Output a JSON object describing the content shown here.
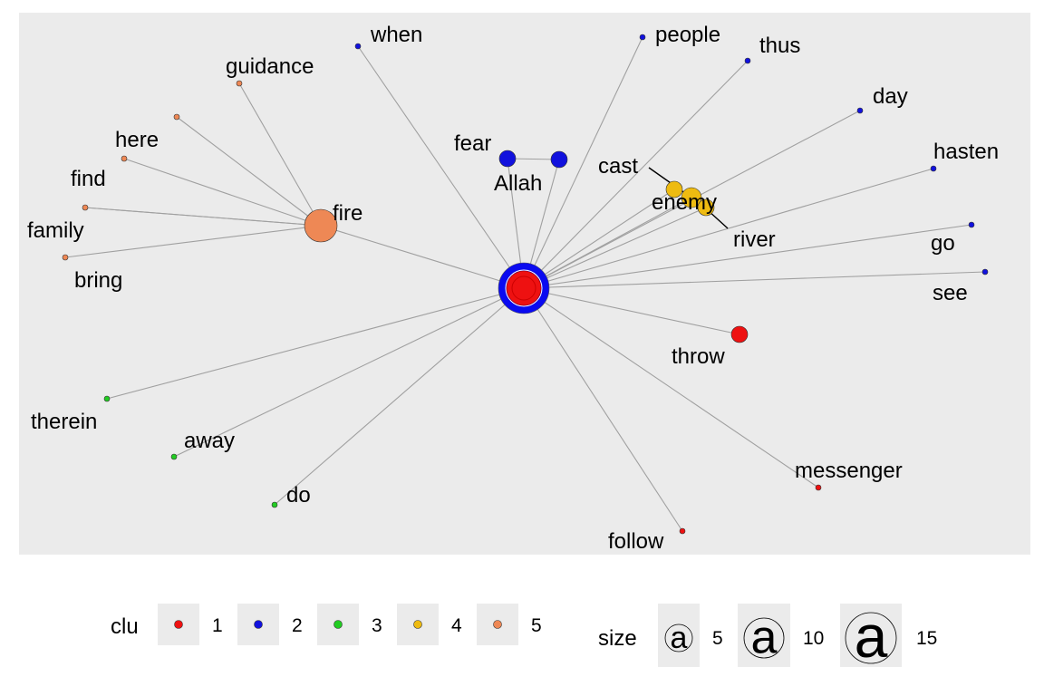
{
  "graph": {
    "center_node": "center",
    "nodes": [
      {
        "id": "center",
        "label": "",
        "cluster": 2,
        "kind": "hub"
      },
      {
        "id": "when",
        "label": "when",
        "cluster": 2
      },
      {
        "id": "people",
        "label": "people",
        "cluster": 2
      },
      {
        "id": "thus",
        "label": "thus",
        "cluster": 2
      },
      {
        "id": "day",
        "label": "day",
        "cluster": 2
      },
      {
        "id": "hasten",
        "label": "hasten",
        "cluster": 2
      },
      {
        "id": "go",
        "label": "go",
        "cluster": 2
      },
      {
        "id": "see",
        "label": "see",
        "cluster": 2
      },
      {
        "id": "fear",
        "label": "fear",
        "cluster": 2
      },
      {
        "id": "Allah",
        "label": "Allah",
        "cluster": 2
      },
      {
        "id": "guidance",
        "label": "guidance",
        "cluster": 5
      },
      {
        "id": "here",
        "label": "here",
        "cluster": 5
      },
      {
        "id": "unlabeled5",
        "label": "",
        "cluster": 5
      },
      {
        "id": "find",
        "label": "find",
        "cluster": 5
      },
      {
        "id": "family",
        "label": "family",
        "cluster": 5
      },
      {
        "id": "bring",
        "label": "bring",
        "cluster": 5
      },
      {
        "id": "fire",
        "label": "fire",
        "cluster": 5
      },
      {
        "id": "cast",
        "label": "cast",
        "cluster": 4
      },
      {
        "id": "enemy",
        "label": "enemy",
        "cluster": 4
      },
      {
        "id": "river",
        "label": "river",
        "cluster": 4
      },
      {
        "id": "throw",
        "label": "throw",
        "cluster": 1
      },
      {
        "id": "messenger",
        "label": "messenger",
        "cluster": 1
      },
      {
        "id": "follow",
        "label": "follow",
        "cluster": 1
      },
      {
        "id": "therein",
        "label": "therein",
        "cluster": 3
      },
      {
        "id": "away",
        "label": "away",
        "cluster": 3
      },
      {
        "id": "do",
        "label": "do",
        "cluster": 3
      }
    ],
    "edges": [
      [
        "center",
        "when"
      ],
      [
        "center",
        "people"
      ],
      [
        "center",
        "thus"
      ],
      [
        "center",
        "day"
      ],
      [
        "center",
        "hasten"
      ],
      [
        "center",
        "go"
      ],
      [
        "center",
        "see"
      ],
      [
        "center",
        "fear"
      ],
      [
        "center",
        "Allah"
      ],
      [
        "center",
        "fire"
      ],
      [
        "center",
        "cast"
      ],
      [
        "center",
        "enemy"
      ],
      [
        "center",
        "river"
      ],
      [
        "center",
        "throw"
      ],
      [
        "center",
        "messenger"
      ],
      [
        "center",
        "follow"
      ],
      [
        "center",
        "therein"
      ],
      [
        "center",
        "away"
      ],
      [
        "center",
        "do"
      ],
      [
        "fear",
        "Allah"
      ],
      [
        "fire",
        "guidance"
      ],
      [
        "fire",
        "here"
      ],
      [
        "fire",
        "unlabeled5"
      ],
      [
        "fire",
        "find"
      ],
      [
        "fire",
        "family"
      ],
      [
        "fire",
        "bring"
      ],
      [
        "cast",
        "enemy"
      ],
      [
        "enemy",
        "river"
      ]
    ]
  },
  "legend": {
    "clu_title": "clu",
    "clusters": [
      {
        "label": "1",
        "color": "#ee1111"
      },
      {
        "label": "2",
        "color": "#1111dd"
      },
      {
        "label": "3",
        "color": "#22cc22"
      },
      {
        "label": "4",
        "color": "#eebb11"
      },
      {
        "label": "5",
        "color": "#ee8855"
      }
    ],
    "size_title": "size",
    "sizes": [
      {
        "label": "5",
        "glyph": "a"
      },
      {
        "label": "10",
        "glyph": "a"
      },
      {
        "label": "15",
        "glyph": "a"
      }
    ]
  },
  "colors": {
    "panel": "#ebebeb",
    "edge": "#a0a0a0",
    "hub_ring": "#0a0af0",
    "hub_core": "#ee1111"
  }
}
